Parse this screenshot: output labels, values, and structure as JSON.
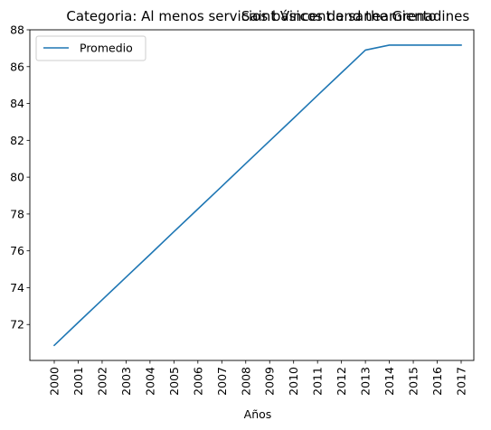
{
  "chart_data": {
    "type": "line",
    "title_left": "Categoria: Al menos servicios básicos de saneamiento",
    "title_right": "Saint Vincent and the Grenadines",
    "xlabel": "Años",
    "ylabel": "",
    "x": [
      "2000",
      "2001",
      "2002",
      "2003",
      "2004",
      "2005",
      "2006",
      "2007",
      "2008",
      "2009",
      "2010",
      "2011",
      "2012",
      "2013",
      "2014",
      "2015",
      "2016",
      "2017"
    ],
    "series": [
      {
        "name": "Promedio",
        "color": "#1f77b4",
        "values": [
          70.87,
          72.11,
          73.34,
          74.57,
          75.8,
          77.04,
          78.27,
          79.5,
          80.74,
          81.97,
          83.2,
          84.44,
          85.67,
          86.9,
          87.17,
          87.17,
          87.17,
          87.17
        ]
      }
    ],
    "ylim": [
      70.05,
      88.0
    ],
    "yticks": [
      72,
      74,
      76,
      78,
      80,
      82,
      84,
      86,
      88
    ],
    "grid": false,
    "legend_position": "upper-left"
  }
}
